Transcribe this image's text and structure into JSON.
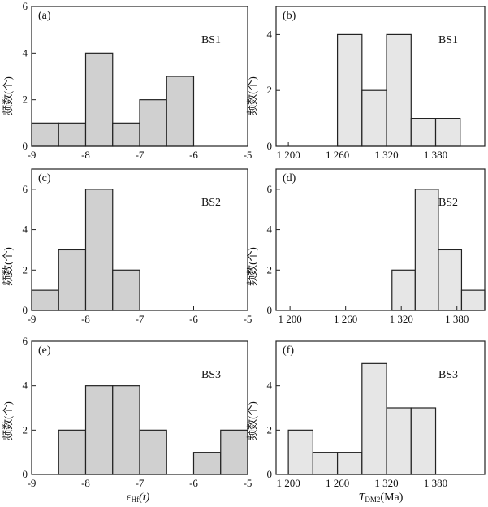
{
  "figure": {
    "left_ylabel": "频数(个)",
    "left_xlabel_main": "ε",
    "left_xlabel_sub": "Hf",
    "left_xlabel_tail": "(t)",
    "right_xlabel_main": "T",
    "right_xlabel_sub": "DM2",
    "right_xlabel_tail": "(Ma)"
  },
  "colors": {
    "left_bar_fill": "#d0d0d0",
    "right_bar_fill": "#e6e6e6",
    "bar_stroke": "#222222",
    "axis": "#222222"
  },
  "chart_data": [
    {
      "type": "bar",
      "panel_label": "(a)",
      "sample": "BS1",
      "column": "left",
      "bin_edges": [
        -9,
        -8.5,
        -8,
        -7.5,
        -7,
        -6.5,
        -6
      ],
      "values": [
        1,
        1,
        4,
        1,
        2,
        3
      ],
      "xlim": [
        -9,
        -5
      ],
      "ylim": [
        0,
        6
      ],
      "xticks": [
        -9,
        -8,
        -7,
        -6,
        -5
      ],
      "xtick_labels": [
        "-9",
        "-8",
        "-7",
        "-6",
        "-5"
      ],
      "yticks": [
        0,
        2,
        4,
        6
      ],
      "ytick_labels": [
        "0",
        "2",
        "4",
        "6"
      ],
      "show_xlabel": false
    },
    {
      "type": "bar",
      "panel_label": "(b)",
      "sample": "BS1",
      "column": "right",
      "bin_edges": [
        1260,
        1290,
        1320,
        1350,
        1380,
        1410
      ],
      "values": [
        4,
        2,
        4,
        1,
        1
      ],
      "xlim": [
        1185,
        1440
      ],
      "ylim": [
        0,
        5
      ],
      "xticks": [
        1200,
        1260,
        1320,
        1380
      ],
      "xtick_labels": [
        "1 200",
        "1 260",
        "1 320",
        "1 380"
      ],
      "yticks": [
        0,
        2,
        4
      ],
      "ytick_labels": [
        "0",
        "2",
        "4"
      ],
      "show_xlabel": false
    },
    {
      "type": "bar",
      "panel_label": "(c)",
      "sample": "BS2",
      "column": "left",
      "bin_edges": [
        -9,
        -8.5,
        -8,
        -7.5,
        -7
      ],
      "values": [
        1,
        3,
        6,
        2
      ],
      "xlim": [
        -9,
        -5
      ],
      "ylim": [
        0,
        7
      ],
      "xticks": [
        -9,
        -8,
        -7,
        -6,
        -5
      ],
      "xtick_labels": [
        "-9",
        "-8",
        "-7",
        "-6",
        "-5"
      ],
      "yticks": [
        0,
        2,
        4,
        6
      ],
      "ytick_labels": [
        "0",
        "2",
        "4",
        "6"
      ],
      "show_xlabel": false
    },
    {
      "type": "bar",
      "panel_label": "(d)",
      "sample": "BS2",
      "column": "right",
      "bin_edges": [
        1310,
        1335,
        1360,
        1385,
        1410
      ],
      "values": [
        2,
        6,
        3,
        1
      ],
      "xlim": [
        1185,
        1410
      ],
      "ylim": [
        0,
        7
      ],
      "xticks": [
        1200,
        1260,
        1320,
        1380
      ],
      "xtick_labels": [
        "1 200",
        "1 260",
        "1 320",
        "1 380"
      ],
      "yticks": [
        0,
        2,
        4,
        6
      ],
      "ytick_labels": [
        "0",
        "2",
        "4",
        "6"
      ],
      "show_xlabel": false
    },
    {
      "type": "bar",
      "panel_label": "(e)",
      "sample": "BS3",
      "column": "left",
      "bin_edges": [
        -8.5,
        -8,
        -7.5,
        -7,
        -6.5,
        -6,
        -5.5,
        -5
      ],
      "values": [
        2,
        4,
        4,
        2,
        0,
        1,
        2
      ],
      "xlim": [
        -9,
        -5
      ],
      "ylim": [
        0,
        6
      ],
      "xticks": [
        -9,
        -8,
        -7,
        -6,
        -5
      ],
      "xtick_labels": [
        "-9",
        "-8",
        "-7",
        "-6",
        "-5"
      ],
      "yticks": [
        0,
        2,
        4,
        6
      ],
      "ytick_labels": [
        "0",
        "2",
        "4",
        "6"
      ],
      "show_xlabel": true
    },
    {
      "type": "bar",
      "panel_label": "(f)",
      "sample": "BS3",
      "column": "right",
      "bin_edges": [
        1200,
        1230,
        1260,
        1290,
        1320,
        1350,
        1380
      ],
      "values": [
        2,
        1,
        1,
        5,
        3,
        3
      ],
      "xlim": [
        1185,
        1440
      ],
      "ylim": [
        0,
        6
      ],
      "xticks": [
        1200,
        1260,
        1320,
        1380
      ],
      "xtick_labels": [
        "1 200",
        "1 260",
        "1 320",
        "1 380"
      ],
      "yticks": [
        0,
        2,
        4
      ],
      "ytick_labels": [
        "0",
        "2",
        "4"
      ],
      "show_xlabel": true
    }
  ]
}
